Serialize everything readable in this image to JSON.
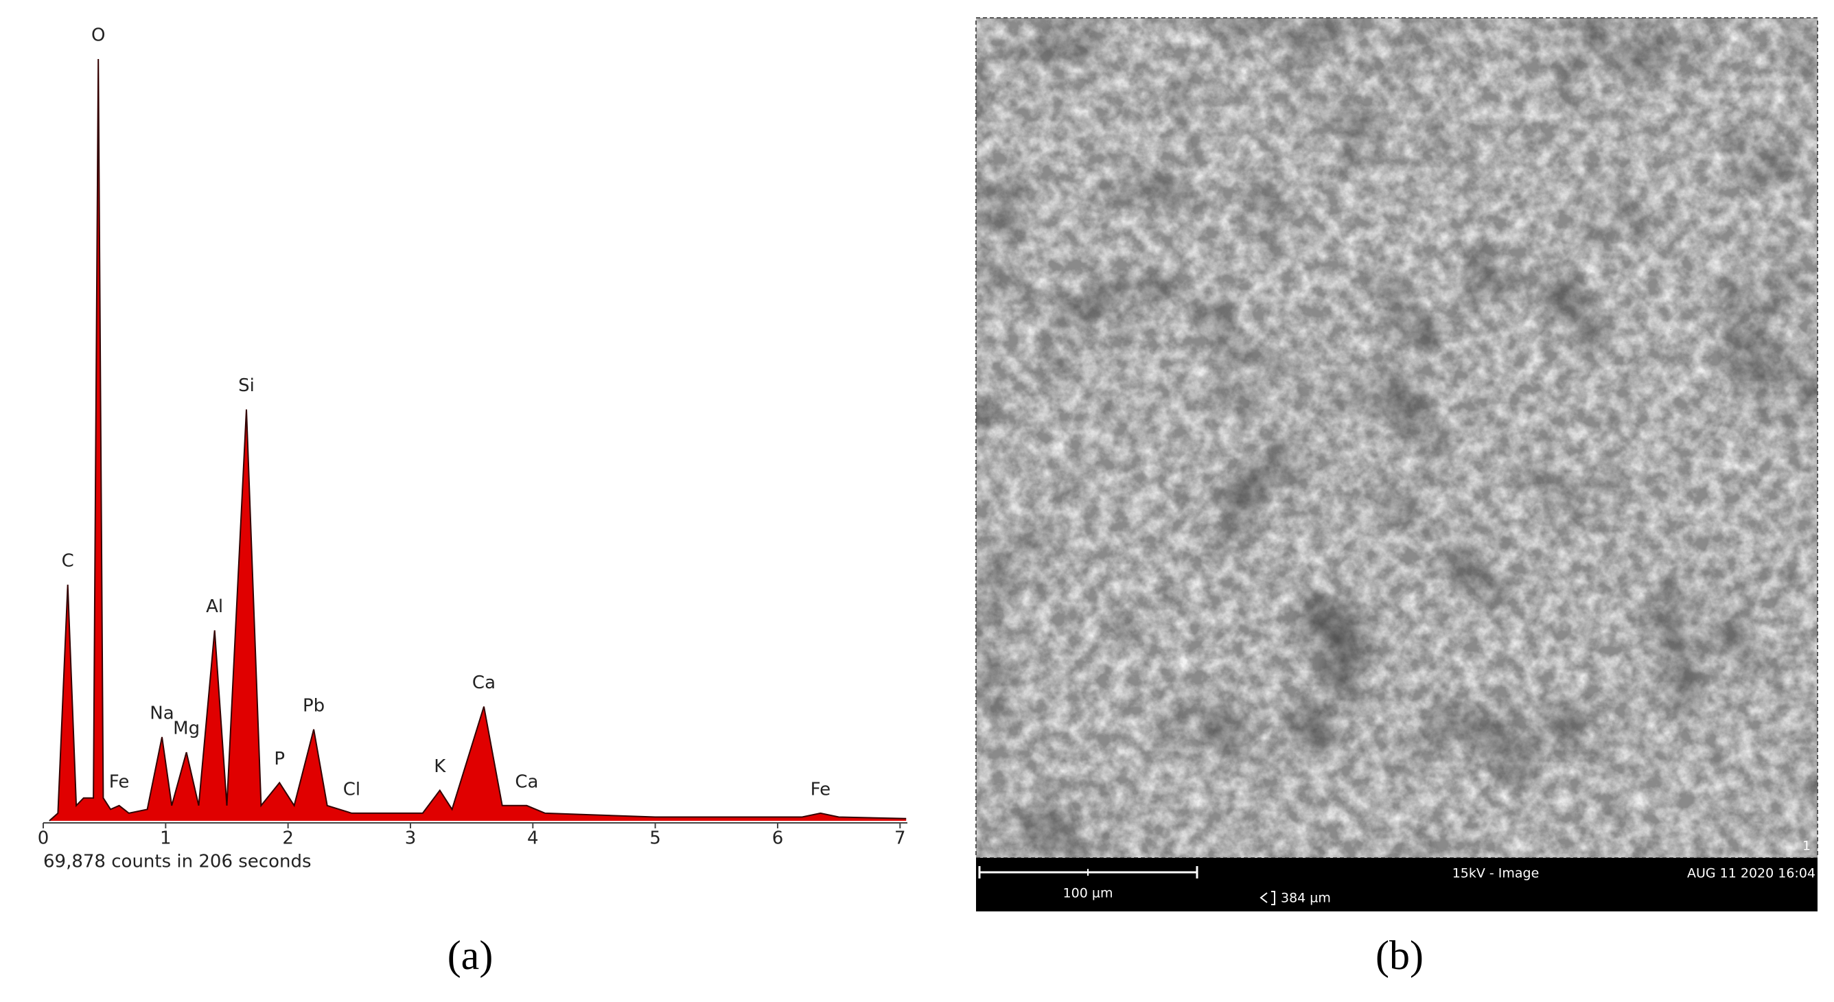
{
  "chart_data": {
    "type": "area",
    "color": "#e00000",
    "x": [
      0.05,
      0.12,
      0.2,
      0.27,
      0.33,
      0.41,
      0.45,
      0.49,
      0.55,
      0.62,
      0.7,
      0.85,
      0.97,
      1.05,
      1.17,
      1.27,
      1.4,
      1.5,
      1.66,
      1.78,
      1.93,
      2.05,
      2.21,
      2.32,
      2.52,
      2.8,
      3.1,
      3.24,
      3.34,
      3.6,
      3.75,
      3.95,
      4.1,
      5,
      6.2,
      6.35,
      6.5,
      7.05
    ],
    "values": [
      0,
      1,
      31,
      2,
      3,
      3,
      100,
      3,
      1.5,
      2,
      1,
      1.5,
      11,
      2,
      9,
      2,
      25,
      2,
      54,
      2,
      5,
      2,
      12,
      2,
      1,
      1,
      1,
      4,
      1.5,
      15,
      2,
      2,
      1,
      0.5,
      0.5,
      1,
      0.5,
      0.3
    ],
    "xlim": [
      0,
      7.06
    ],
    "ylim": [
      0,
      100
    ],
    "xticks": [
      0,
      1,
      2,
      3,
      4,
      5,
      6,
      7
    ],
    "xlabel": "69,878 counts in 206 seconds",
    "annotations": [
      {
        "text": "C",
        "x": 0.2,
        "y": 31
      },
      {
        "text": "O",
        "x": 0.45,
        "y": 100
      },
      {
        "text": "Fe",
        "x": 0.62,
        "y": 2
      },
      {
        "text": "Na",
        "x": 0.97,
        "y": 11
      },
      {
        "text": "Mg",
        "x": 1.17,
        "y": 9
      },
      {
        "text": "Al",
        "x": 1.4,
        "y": 25
      },
      {
        "text": "Si",
        "x": 1.66,
        "y": 54
      },
      {
        "text": "P",
        "x": 1.93,
        "y": 5
      },
      {
        "text": "Pb",
        "x": 2.21,
        "y": 12
      },
      {
        "text": "Cl",
        "x": 2.52,
        "y": 1
      },
      {
        "text": "K",
        "x": 3.24,
        "y": 4
      },
      {
        "text": "Ca",
        "x": 3.6,
        "y": 15
      },
      {
        "text": "Ca",
        "x": 3.95,
        "y": 2
      },
      {
        "text": "Fe",
        "x": 6.35,
        "y": 1
      }
    ]
  },
  "sem": {
    "scale_bar": "100 µm",
    "mode": "15kV - Image",
    "date": "AUG 11 2020 16:04",
    "field": "384 µm",
    "index": "1"
  },
  "panels": [
    "(a)",
    "(b)"
  ]
}
